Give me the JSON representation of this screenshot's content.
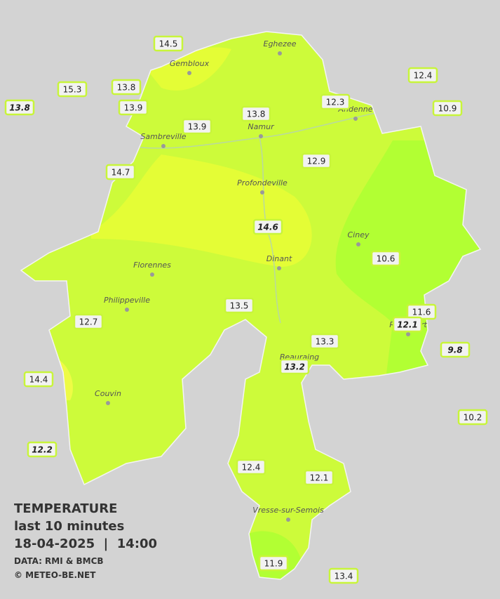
{
  "legend": {
    "title": "TEMPERATURE",
    "subtitle": "last 10 minutes",
    "datetime": "18-04-2025  |  14:00",
    "source": "DATA: RMI & BMCB",
    "credit": "© METEO-BE.NET"
  },
  "cities": [
    "Eghezee",
    "Gembloux",
    "Andenne",
    "Namur",
    "Sambreville",
    "Profondeville",
    "Ciney",
    "Dinant",
    "Florennes",
    "Philippeville",
    "Rochefort",
    "Beauraing",
    "Couvin",
    "Vresse-sur-Semois"
  ],
  "stations": [
    {
      "value": 14.5,
      "italic": false
    },
    {
      "value": 15.3,
      "italic": false
    },
    {
      "value": 13.8,
      "italic": false
    },
    {
      "value": 13.8,
      "italic": true
    },
    {
      "value": 13.9,
      "italic": false
    },
    {
      "value": 13.9,
      "italic": false
    },
    {
      "value": 13.8,
      "italic": false
    },
    {
      "value": 12.3,
      "italic": false
    },
    {
      "value": 12.4,
      "italic": false
    },
    {
      "value": 10.9,
      "italic": false
    },
    {
      "value": 12.9,
      "italic": false
    },
    {
      "value": 14.7,
      "italic": false
    },
    {
      "value": 14.6,
      "italic": true
    },
    {
      "value": 10.6,
      "italic": false
    },
    {
      "value": 13.5,
      "italic": false
    },
    {
      "value": 11.6,
      "italic": false
    },
    {
      "value": 12.1,
      "italic": true
    },
    {
      "value": 12.7,
      "italic": false
    },
    {
      "value": 13.3,
      "italic": false
    },
    {
      "value": 9.8,
      "italic": true
    },
    {
      "value": 13.2,
      "italic": true
    },
    {
      "value": 14.4,
      "italic": false
    },
    {
      "value": 10.2,
      "italic": false
    },
    {
      "value": 12.2,
      "italic": true
    },
    {
      "value": 12.4,
      "italic": false
    },
    {
      "value": 12.1,
      "italic": false
    },
    {
      "value": 11.9,
      "italic": false
    },
    {
      "value": 13.4,
      "italic": false
    }
  ]
}
